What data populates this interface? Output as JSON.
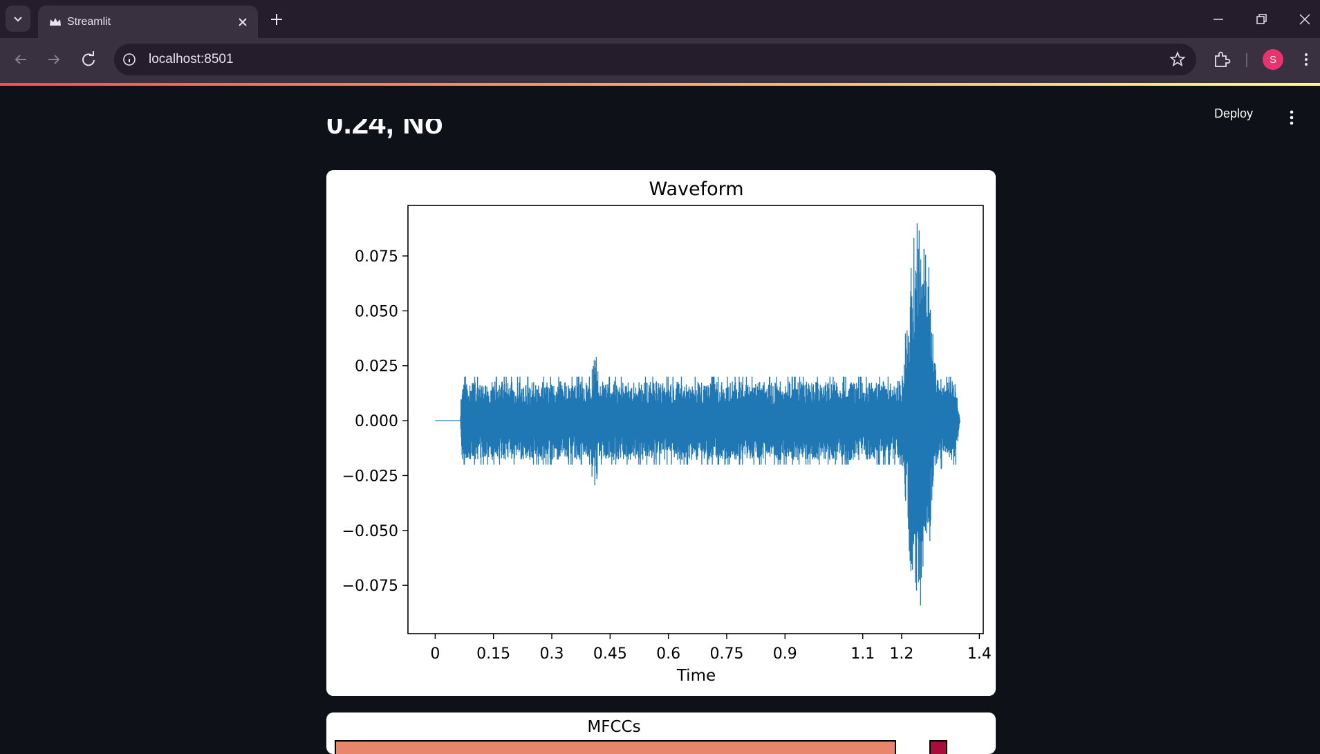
{
  "browser": {
    "tab_title": "Streamlit",
    "url": "localhost:8501",
    "avatar_letter": "S"
  },
  "app": {
    "deploy_label": "Deploy",
    "clipped_heading": "0.24, No"
  },
  "chart_data": [
    {
      "type": "line",
      "title": "Waveform",
      "xlabel": "Time",
      "ylabel": "",
      "xticks": [
        "0",
        "0.15",
        "0.3",
        "0.45",
        "0.6",
        "0.75",
        "0.9",
        "1.1",
        "1.2",
        "1.4"
      ],
      "yticks": [
        "0.075",
        "0.050",
        "0.025",
        "0.000",
        "−0.025",
        "−0.050",
        "−0.075"
      ],
      "xlim": [
        -0.07,
        1.41
      ],
      "ylim": [
        -0.097,
        0.098
      ],
      "grid": false,
      "series": [
        {
          "color": "#1f77b4",
          "envelope": {
            "time": [
              0,
              0.065,
              0.068,
              0.4,
              0.41,
              0.42,
              1.2,
              1.22,
              1.23,
              1.24,
              1.27,
              1.28,
              1.29,
              1.31,
              1.34,
              1.35
            ],
            "amplitude": [
              0,
              0,
              0.02,
              0.02,
              0.036,
              0.02,
              0.02,
              0.06,
              0.082,
              0.09,
              0.07,
              0.04,
              0.025,
              0.02,
              0.02,
              0.0
            ]
          },
          "end_time": 1.35
        }
      ]
    },
    {
      "type": "heatmap",
      "title": "MFCCs"
    }
  ]
}
